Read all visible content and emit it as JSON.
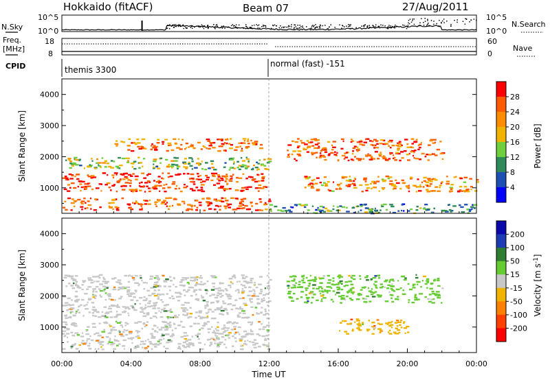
{
  "header": {
    "station": "Hokkaido (fitACF)",
    "beam": "Beam 07",
    "date": "27/Aug/2011"
  },
  "strips": {
    "nsky_label": "N.Sky",
    "nsky_ticks": [
      "10^5",
      "10^0"
    ],
    "nsearch_label": "N.Search",
    "nsearch_ticks": [
      "10^5",
      "10^0"
    ],
    "freq_label": "Freq.",
    "freq_unit": "[MHz]",
    "freq_ticks": [
      "18",
      "8"
    ],
    "nave_label": "Nave",
    "nave_ticks": [
      "60",
      "0"
    ],
    "cpid_label": "CPID",
    "cpid_mode1": "themis 3300",
    "cpid_mode2": "normal (fast) -151"
  },
  "colors": {
    "power_scale": [
      "#0000ff",
      "#1e50b4",
      "#2f8a5a",
      "#6fcf3f",
      "#f0b400",
      "#ff8c00",
      "#ff5a00",
      "#ff0000"
    ],
    "velocity_scale": [
      "#0a0aaa",
      "#1e3cb4",
      "#2e7d32",
      "#66cc33",
      "#c8c8c8",
      "#f0b400",
      "#ff8000",
      "#ff4000",
      "#ff0000"
    ]
  },
  "chart_data": [
    {
      "type": "heatmap",
      "name": "Power",
      "ylabel": "Slant Range [km]",
      "xlabel": "Time UT",
      "x_ticks": [
        "00:00",
        "04:00",
        "08:00",
        "12:00",
        "16:00",
        "20:00",
        "00:00"
      ],
      "y_ticks": [
        1000,
        2000,
        3000,
        4000
      ],
      "ylim": [
        180,
        4500
      ],
      "xlim_hours": [
        0,
        24
      ],
      "colorbar": {
        "label": "Power [dB]",
        "ticks": [
          "4",
          "8",
          "12",
          "16",
          "20",
          "24",
          "28"
        ],
        "range": [
          0,
          32
        ]
      },
      "scatter_bands": [
        {
          "t0": 0,
          "t1": 12,
          "r0": 900,
          "r1": 1500,
          "power": 28
        },
        {
          "t0": 0,
          "t1": 12,
          "r0": 300,
          "r1": 700,
          "power": 26
        },
        {
          "t0": 3,
          "t1": 11.5,
          "r0": 2200,
          "r1": 2600,
          "power": 24
        },
        {
          "t0": 0,
          "t1": 12,
          "r0": 1600,
          "r1": 2000,
          "power": 14
        },
        {
          "t0": 13,
          "t1": 22,
          "r0": 1900,
          "r1": 2600,
          "power": 26
        },
        {
          "t0": 14,
          "t1": 24,
          "r0": 900,
          "r1": 1400,
          "power": 22
        },
        {
          "t0": 12,
          "t1": 24,
          "r0": 200,
          "r1": 500,
          "power": 10
        }
      ]
    },
    {
      "type": "heatmap",
      "name": "Velocity",
      "ylabel": "Slant Range [km]",
      "xlabel": "Time UT",
      "x_ticks": [
        "00:00",
        "04:00",
        "08:00",
        "12:00",
        "16:00",
        "20:00",
        "00:00"
      ],
      "y_ticks": [
        1000,
        2000,
        3000,
        4000
      ],
      "ylim": [
        180,
        4500
      ],
      "xlim_hours": [
        0,
        24
      ],
      "colorbar": {
        "label": "Velocity [m s^-1]",
        "ticks": [
          "200",
          "100",
          "50",
          "15",
          "-15",
          "-50",
          "-100",
          "-200"
        ],
        "range": [
          -250,
          250
        ]
      },
      "scatter_bands": [
        {
          "t0": 0,
          "t1": 12,
          "r0": 1300,
          "r1": 2700,
          "velocity": 0
        },
        {
          "t0": 0,
          "t1": 12,
          "r0": 300,
          "r1": 1200,
          "velocity": 0
        },
        {
          "t0": 13,
          "t1": 22,
          "r0": 1800,
          "r1": 2700,
          "velocity": 40
        },
        {
          "t0": 16,
          "t1": 20,
          "r0": 800,
          "r1": 1300,
          "velocity": -60
        }
      ]
    }
  ]
}
